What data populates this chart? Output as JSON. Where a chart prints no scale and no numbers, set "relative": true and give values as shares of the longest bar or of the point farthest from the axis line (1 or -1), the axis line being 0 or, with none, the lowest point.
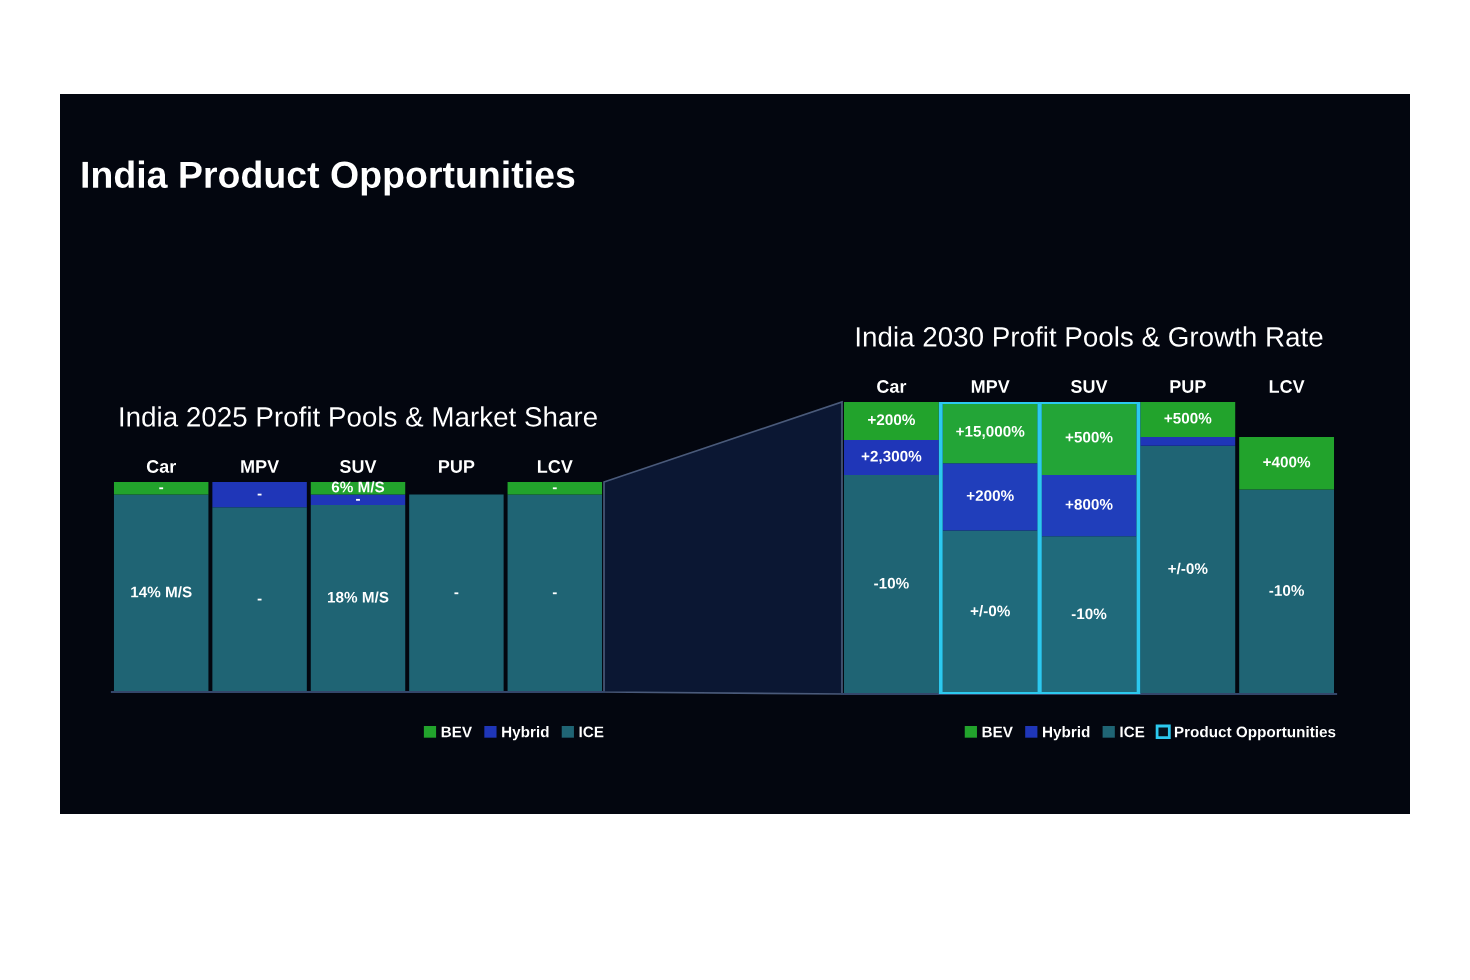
{
  "chart_data": [
    {
      "type": "bar",
      "title": "India Product Opportunities",
      "subtitle": "India 2025 Profit Pools & Market Share",
      "categories": [
        "Car",
        "MPV",
        "SUV",
        "PUP",
        "LCV"
      ],
      "stacked": true,
      "relative": true,
      "legend": "bottom right",
      "series": [
        {
          "name": "ICE",
          "color": "#1f6474",
          "values": [
            0.94,
            0.88,
            0.89,
            0.94,
            0.94
          ]
        },
        {
          "name": "Hybrid",
          "color": "#1f36b8",
          "values": [
            null,
            0.12,
            0.05,
            null,
            null
          ]
        },
        {
          "name": "BEV",
          "color": "#22a32c",
          "values": [
            0.06,
            null,
            0.06,
            null,
            0.06
          ]
        }
      ],
      "annotations": [
        "14% M/S",
        "-",
        "18% M/S",
        "-",
        "-",
        {
          "text": "-",
          "x": "Car",
          "y": 1.0
        },
        {
          "text": "-",
          "x": "MPV",
          "y": 1.0
        },
        {
          "text": "6% M/S",
          "x": "SUV",
          "y": 1.0
        },
        {
          "text": "-",
          "x": "SUV",
          "y": 0.94
        },
        {
          "text": "-",
          "x": "LCV",
          "y": 1.0
        }
      ]
    },
    {
      "type": "bar",
      "title": "India 2030 Profit Pools & Growth Rate",
      "categories": [
        "Car",
        "MPV",
        "SUV",
        "PUP",
        "LCV"
      ],
      "stacked": true,
      "relative": true,
      "legend": "bottom right",
      "series": [
        {
          "name": "ICE",
          "color": "#1f6474",
          "values": [
            0.75,
            0.56,
            0.54,
            0.85,
            0.7
          ]
        },
        {
          "name": "Hybrid",
          "color": "#1f36b8",
          "values": [
            0.12,
            0.23,
            0.21,
            0.03,
            null
          ]
        },
        {
          "name": "BEV",
          "color": "#22a32c",
          "values": [
            0.13,
            0.21,
            0.25,
            0.12,
            0.18
          ]
        }
      ],
      "annotations": [
        "-10%",
        "+/-0%",
        "-10%",
        "+/-0%",
        "-10%",
        {
          "text": "+200%",
          "x": "Car",
          "y": 1.0
        },
        {
          "text": "+2,300%",
          "x": "Car",
          "y": 0.87
        },
        {
          "text": "+15,000%",
          "x": "MPV",
          "y": 1.0
        },
        {
          "text": "+200%",
          "x": "MPV",
          "y": 0.79
        },
        {
          "text": "+500%",
          "x": "SUV",
          "y": 1.0
        },
        {
          "text": "+800%",
          "x": "SUV",
          "y": 0.75
        },
        {
          "text": "+500%",
          "x": "PUP",
          "y": 1.0
        },
        {
          "text": "+400%",
          "x": "LCV",
          "y": 0.88
        }
      ],
      "bands": [
        {
          "axis": "x",
          "from": "MPV",
          "to": "MPV",
          "label": "Product Opportunities",
          "color": "#2cc9ef"
        },
        {
          "axis": "x",
          "from": "SUV",
          "to": "SUV",
          "label": null,
          "color": "#2cc9ef"
        }
      ]
    }
  ]
}
